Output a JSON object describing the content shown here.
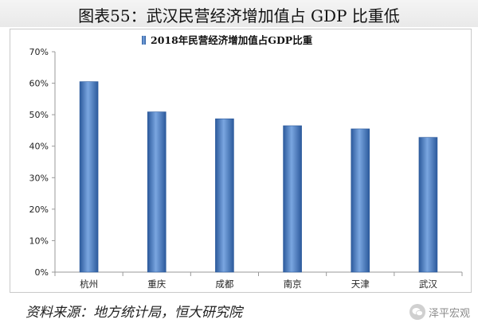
{
  "figure_title": "图表55：武汉民营经济增加值占 GDP 比重低",
  "source": "资料来源：地方统计局，恒大研究院",
  "watermark": {
    "icon": "wechat-icon",
    "text": "泽平宏观"
  },
  "colors": {
    "bar": "#4f81c7",
    "bar_dark": "#2c5a9c",
    "axis": "#999999"
  },
  "chart_data": {
    "type": "bar",
    "title": "",
    "legend_position": "top",
    "series": [
      {
        "name": "2018年民营经济增加值占GDP比重",
        "values": [
          60.5,
          50.9,
          48.7,
          46.5,
          45.5,
          42.8
        ]
      }
    ],
    "categories": [
      "杭州",
      "重庆",
      "成都",
      "南京",
      "天津",
      "武汉"
    ],
    "y_ticks": [
      "0%",
      "10%",
      "20%",
      "30%",
      "40%",
      "50%",
      "60%",
      "70%"
    ],
    "ylim": [
      0,
      70
    ],
    "grid": false,
    "unit": "%"
  }
}
